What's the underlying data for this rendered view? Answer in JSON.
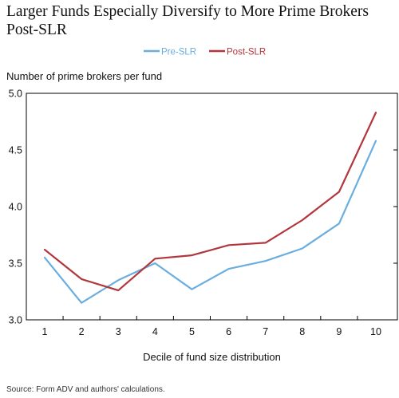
{
  "chart_data": {
    "type": "line",
    "title": "Larger Funds Especially Diversify to More Prime Brokers Post-SLR",
    "xlabel": "Decile of fund size distribution",
    "ylabel": "Number of prime brokers per fund",
    "x": [
      "1",
      "2",
      "3",
      "4",
      "5",
      "6",
      "7",
      "8",
      "9",
      "10"
    ],
    "ylim": [
      3.0,
      5.0
    ],
    "yticks": [
      "3.0",
      "3.5",
      "4.0",
      "4.5",
      "5.0"
    ],
    "grid": false,
    "legend_position": "top-center",
    "series": [
      {
        "name": "Pre-SLR",
        "color": "#6aaee0",
        "values": [
          3.55,
          3.15,
          3.35,
          3.5,
          3.27,
          3.45,
          3.52,
          3.63,
          3.85,
          4.58
        ]
      },
      {
        "name": "Post-SLR",
        "color": "#b2373c",
        "values": [
          3.62,
          3.36,
          3.26,
          3.54,
          3.57,
          3.66,
          3.68,
          3.88,
          4.13,
          4.83
        ]
      }
    ],
    "source": "Source: Form ADV and authors' calculations."
  }
}
